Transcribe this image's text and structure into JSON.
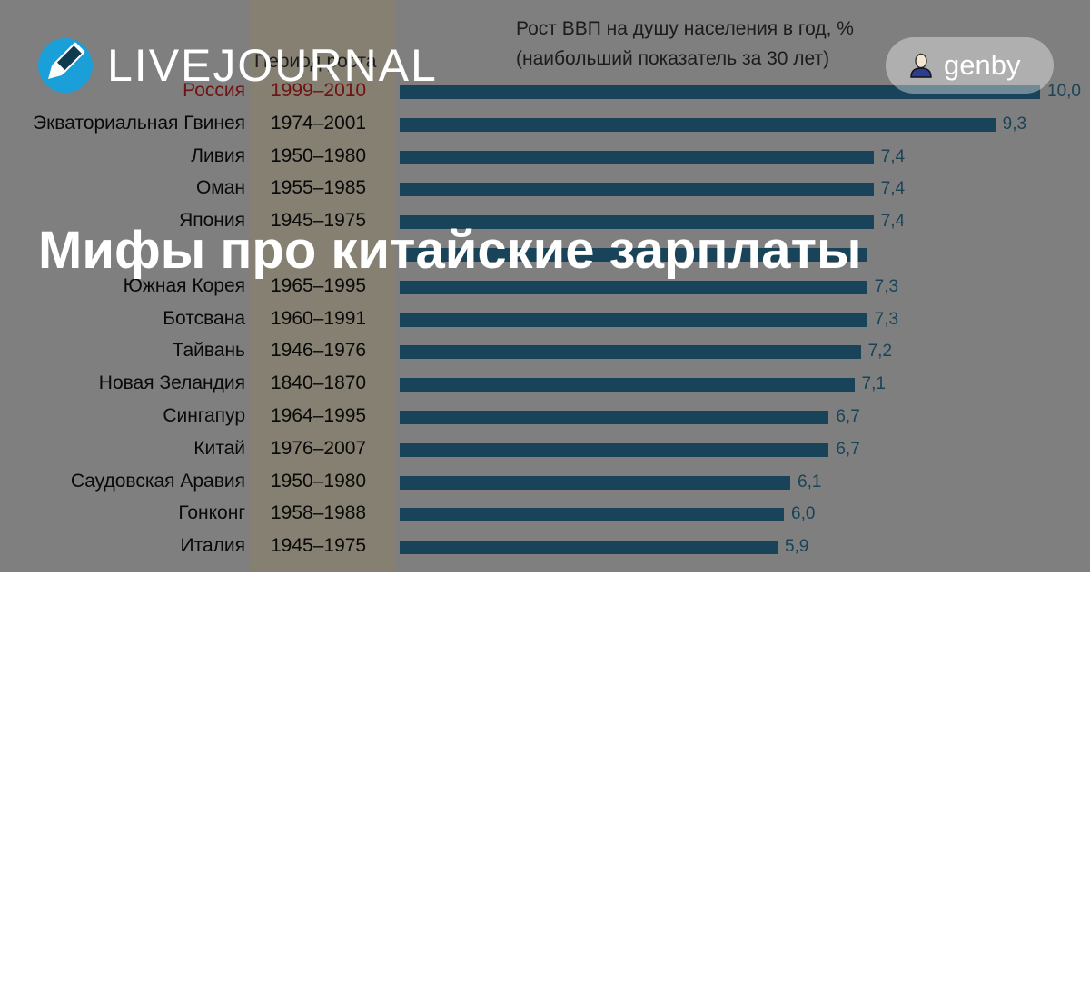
{
  "header": {
    "logo_text": "LIVEJOURNAL",
    "user_name": "genby",
    "logo_icon": "pencil-icon",
    "user_icon": "user-icon"
  },
  "post": {
    "title": "Мифы про китайские зарплаты"
  },
  "colors": {
    "accent_blue": "#2f7aa1",
    "logo_blue": "#1b9fd9",
    "highlight_red": "#cc2222"
  },
  "chart_data": {
    "type": "bar",
    "title": "Рост ВВП на душу населения в год, %",
    "subtitle": "(наибольший показатель за 30 лет)",
    "column_header": "Период роста",
    "xlim": [
      0,
      10
    ],
    "rows": [
      {
        "country": "Россия",
        "period": "1999–2010",
        "value": 10.0,
        "label": "10,0",
        "highlight": true
      },
      {
        "country": "Экваториальная Гвинея",
        "period": "1974–2001",
        "value": 9.3,
        "label": "9,3"
      },
      {
        "country": "Ливия",
        "period": "1950–1980",
        "value": 7.4,
        "label": "7,4"
      },
      {
        "country": "Оман",
        "period": "1955–1985",
        "value": 7.4,
        "label": "7,4"
      },
      {
        "country": "Япония",
        "period": "1945–1975",
        "value": 7.4,
        "label": "7,4"
      },
      {
        "country": "",
        "period": "",
        "value": 7.3,
        "label": ""
      },
      {
        "country": "Южная Корея",
        "period": "1965–1995",
        "value": 7.3,
        "label": "7,3"
      },
      {
        "country": "Ботсвана",
        "period": "1960–1991",
        "value": 7.3,
        "label": "7,3"
      },
      {
        "country": "Тайвань",
        "period": "1946–1976",
        "value": 7.2,
        "label": "7,2"
      },
      {
        "country": "Новая Зеландия",
        "period": "1840–1870",
        "value": 7.1,
        "label": "7,1"
      },
      {
        "country": "Сингапур",
        "period": "1964–1995",
        "value": 6.7,
        "label": "6,7"
      },
      {
        "country": "Китай",
        "period": "1976–2007",
        "value": 6.7,
        "label": "6,7"
      },
      {
        "country": "Саудовская Аравия",
        "period": "1950–1980",
        "value": 6.1,
        "label": "6,1"
      },
      {
        "country": "Гонконг",
        "period": "1958–1988",
        "value": 6.0,
        "label": "6,0"
      },
      {
        "country": "Италия",
        "period": "1945–1975",
        "value": 5.9,
        "label": "5,9"
      }
    ]
  }
}
